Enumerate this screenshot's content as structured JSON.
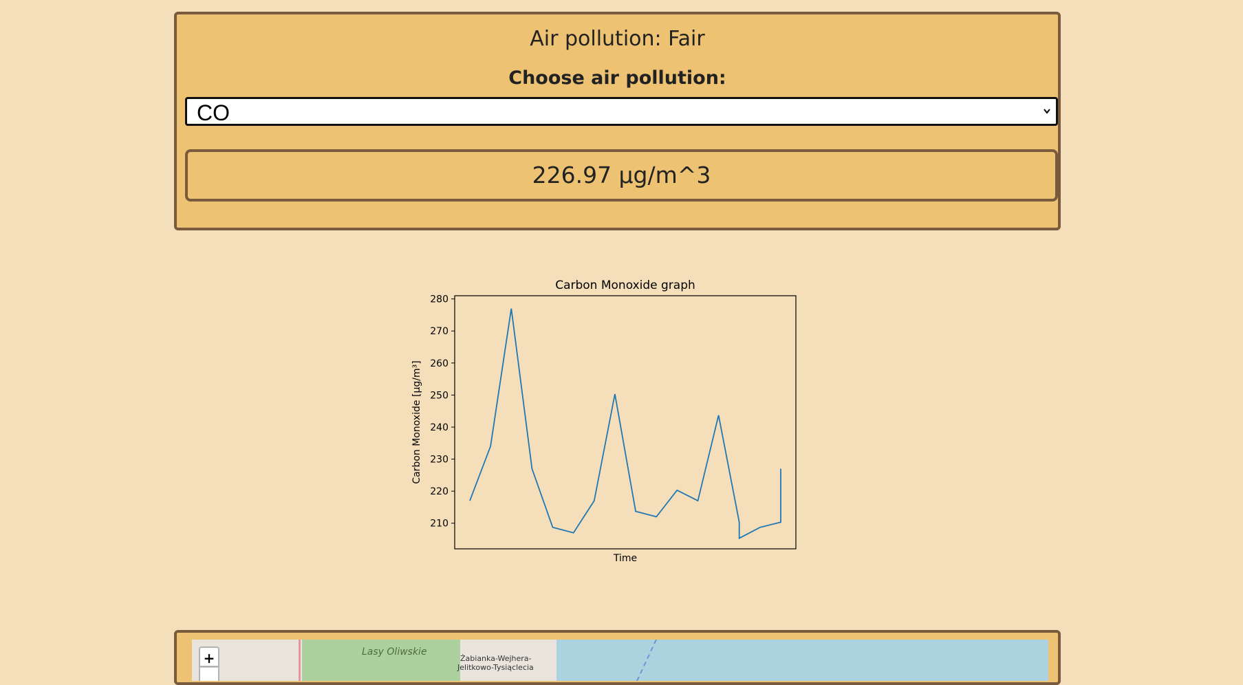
{
  "panel": {
    "title": "Air pollution: Fair",
    "choose_label": "Choose air pollution:",
    "select_value": "CO",
    "measurement": "226.97 µg/m^3"
  },
  "chart_data": {
    "type": "line",
    "title": "Carbon Monoxide graph",
    "xlabel": "Time",
    "ylabel": "Carbon Monoxide [µg/m³]",
    "ylim": [
      202,
      281
    ],
    "yticks": [
      210,
      220,
      230,
      240,
      250,
      260,
      270,
      280
    ],
    "series": [
      {
        "color": "#1f77b4",
        "values": [
          217.0,
          234.0,
          277.0,
          227.0,
          208.7,
          207.0,
          217.0,
          250.3,
          213.7,
          212.0,
          220.3,
          217.0,
          243.7,
          210.3,
          205.3,
          208.7,
          210.3,
          227.0
        ]
      }
    ],
    "x_positions": [
      0,
      1,
      2,
      3,
      4,
      5,
      6,
      7,
      8,
      9,
      10,
      11,
      12,
      13,
      13,
      14,
      15,
      15
    ],
    "grid": false,
    "background": "#f5dfba"
  },
  "map": {
    "zoom_in_label": "+",
    "forest_label": "Lasy Oliwskie",
    "district_line1": "Żabianka-Wejhera-",
    "district_line2": "Jelitkowo-Tysiąclecia"
  }
}
